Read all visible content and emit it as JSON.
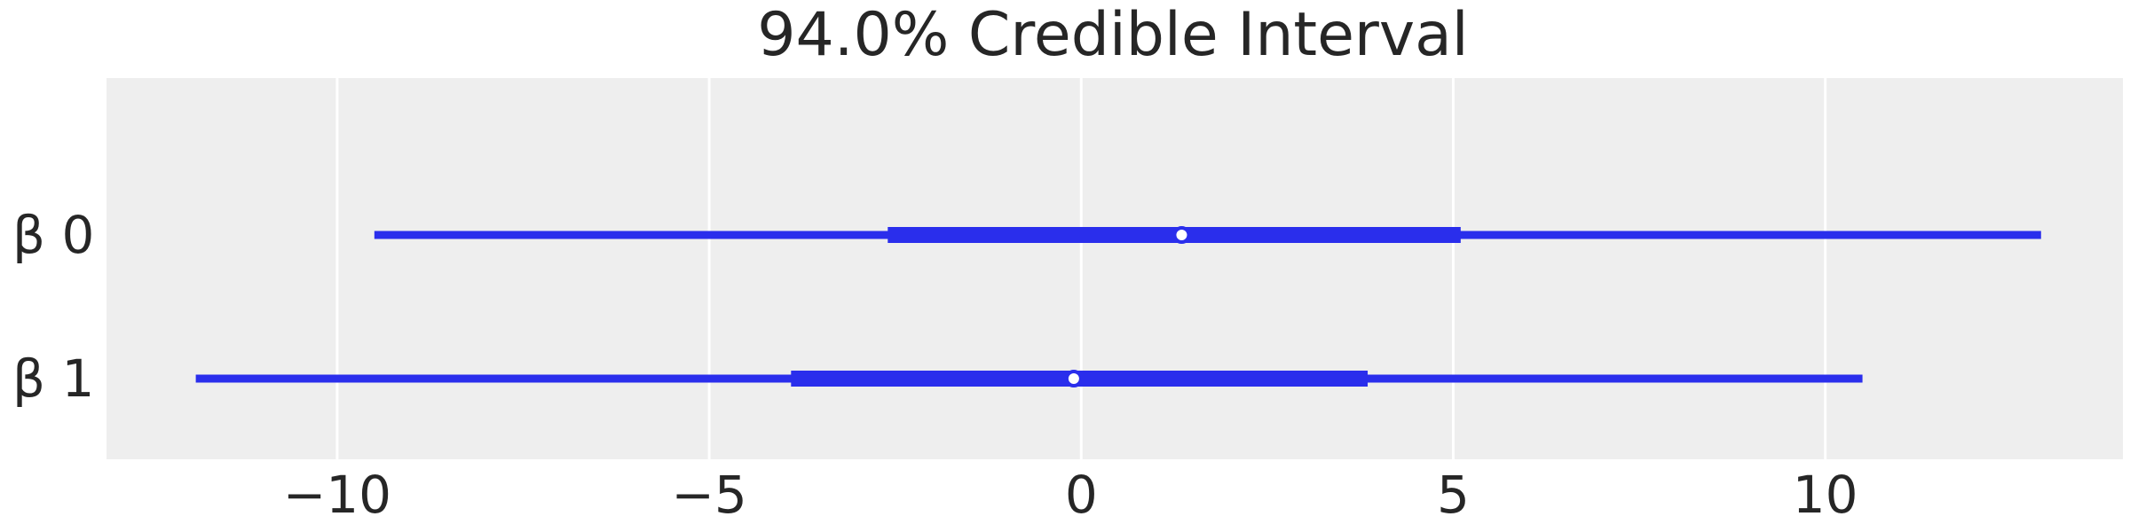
{
  "chart_data": {
    "type": "forest",
    "title": "94.0% Credible Interval",
    "xlabel": "",
    "ylabel": "",
    "xlim": [
      -13.1,
      14.0
    ],
    "xticks": [
      -10,
      -5,
      0,
      5,
      10
    ],
    "xtick_labels": [
      "−10",
      "−5",
      "0",
      "5",
      "10"
    ],
    "grid": "vertical",
    "colors": {
      "series": "#2a2eec",
      "axes_background": "#eeeeee",
      "grid": "#ffffff",
      "text": "#262626",
      "point_fill": "#ffffff"
    },
    "parameters": [
      {
        "label": "β 0",
        "hdi_94": [
          -9.5,
          12.9
        ],
        "iqr": [
          -2.6,
          5.1
        ],
        "point": 1.35
      },
      {
        "label": "β 1",
        "hdi_94": [
          -11.9,
          10.5
        ],
        "iqr": [
          -3.9,
          3.85
        ],
        "point": -0.1
      }
    ]
  }
}
